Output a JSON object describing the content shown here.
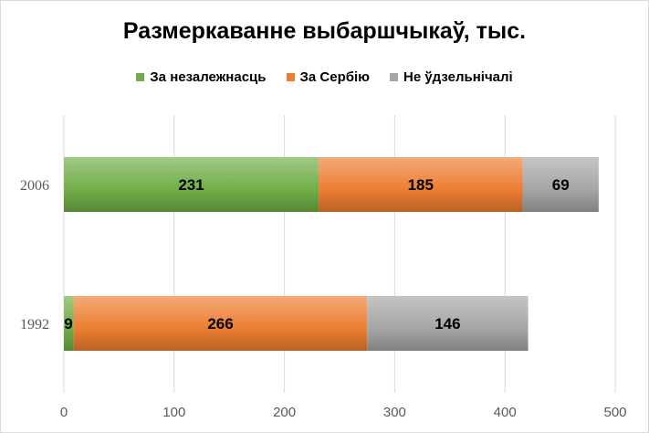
{
  "chart_data": {
    "type": "bar",
    "orientation": "horizontal",
    "stacked": true,
    "title": "Размеркаванне выбаршчыкаў, тыс.",
    "categories": [
      "2006",
      "1992"
    ],
    "series": [
      {
        "name": "За незалежнасць",
        "values": [
          231,
          9
        ],
        "color": "#70ad47"
      },
      {
        "name": "За Сербію",
        "values": [
          185,
          266
        ],
        "color": "#ed7d31"
      },
      {
        "name": "Не ўдзельнічалі",
        "values": [
          69,
          146
        ],
        "color": "#a5a5a5"
      }
    ],
    "xlim": [
      0,
      500
    ],
    "xticks": [
      "0",
      "100",
      "200",
      "300",
      "400",
      "500"
    ],
    "grid": true,
    "legend": "top"
  }
}
